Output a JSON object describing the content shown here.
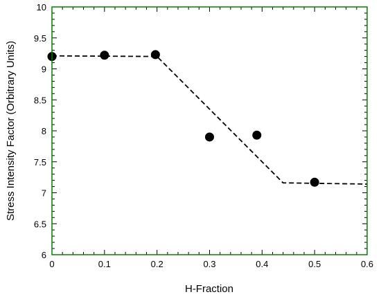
{
  "chart_data": {
    "type": "scatter",
    "xlabel": "H-Fraction",
    "ylabel": "Stress Intensity Factor (Orbitrary Units)",
    "xlim": [
      0,
      0.6
    ],
    "ylim": [
      6,
      10
    ],
    "xticks": [
      0,
      0.1,
      0.2,
      0.3,
      0.4,
      0.5,
      0.6
    ],
    "yticks": [
      6,
      6.5,
      7,
      7.5,
      8,
      8.5,
      9,
      9.5,
      10
    ],
    "xtick_labels": [
      "0",
      "0.1",
      "0.2",
      "0.3",
      "0.4",
      "0.5",
      "0.6"
    ],
    "ytick_labels": [
      "6",
      "6.5",
      "7",
      "7.5",
      "8",
      "8.5",
      "9",
      "9.5",
      "10"
    ],
    "grid": false,
    "frame_color": "#008000",
    "series": [
      {
        "kind": "points",
        "color": "#000000",
        "x": [
          0.0,
          0.1,
          0.197,
          0.3,
          0.39,
          0.5
        ],
        "y": [
          9.2,
          9.22,
          9.23,
          7.9,
          7.93,
          7.17
        ]
      },
      {
        "kind": "dashed-line",
        "color": "#000000",
        "x": [
          0.0,
          0.2,
          0.44,
          0.6
        ],
        "y": [
          9.21,
          9.2,
          7.16,
          7.14
        ]
      }
    ]
  }
}
